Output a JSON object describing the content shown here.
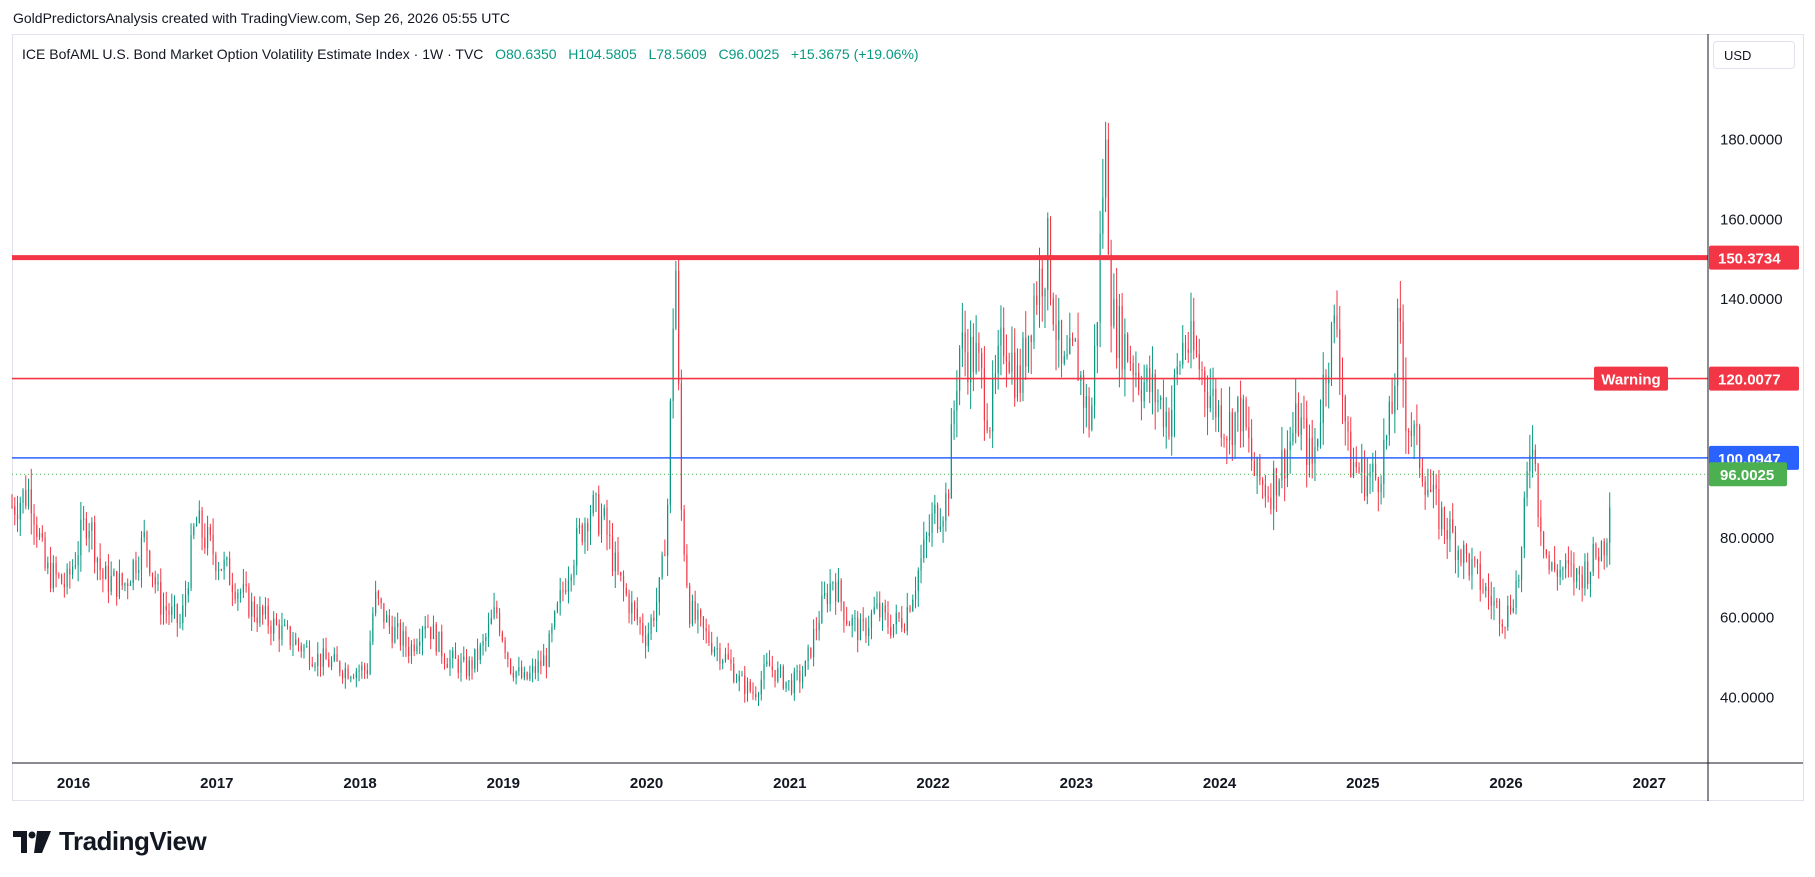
{
  "caption": "GoldPredictorsAnalysis created with TradingView.com, Sep 26, 2026 05:55 UTC",
  "header": {
    "title": "ICE BofAML U.S. Bond Market Option Volatility Estimate Index · 1W · TVC",
    "open": "O80.6350",
    "high": "H104.5805",
    "low": "L78.5609",
    "close": "C96.0025",
    "change": "+15.3675 (+19.06%)"
  },
  "currency": "USD",
  "brand": "TradingView",
  "colors": {
    "up": "#089981",
    "down": "#f23645",
    "blue_line": "#2962ff",
    "red_line": "#f23645",
    "price_label": "#4caf50"
  },
  "chart_data": {
    "type": "candlestick",
    "timeframe": "1W",
    "y_ticks": [
      40,
      60,
      80,
      140,
      160,
      180
    ],
    "y_tick_labels": [
      "40.0000",
      "60.0000",
      "80.0000",
      "140.0000",
      "160.0000",
      "180.0000"
    ],
    "ylim": [
      23.5,
      205
    ],
    "x_ticks": [
      "2016",
      "2017",
      "2018",
      "2019",
      "2020",
      "2021",
      "2022",
      "2023",
      "2024",
      "2025",
      "2026",
      "2027"
    ],
    "x_range_years": [
      2015.57,
      2027.41
    ],
    "grid": false,
    "horizontal_lines": [
      {
        "value": 150.3734,
        "label": "150.3734",
        "color": "#f23645",
        "weight": "thick"
      },
      {
        "value": 120.0077,
        "label": "120.0077",
        "color": "#f23645",
        "weight": "thin",
        "tag": "Warning"
      },
      {
        "value": 100.0947,
        "label": "100.0947",
        "color": "#2962ff",
        "weight": "thin"
      }
    ],
    "last_price": {
      "value": 96.0025,
      "label": "96.0025"
    },
    "price_path": [
      [
        2015.57,
        88
      ],
      [
        2015.7,
        92
      ],
      [
        2015.8,
        72
      ],
      [
        2015.95,
        68
      ],
      [
        2016.1,
        86
      ],
      [
        2016.2,
        70
      ],
      [
        2016.35,
        68
      ],
      [
        2016.5,
        80
      ],
      [
        2016.6,
        64
      ],
      [
        2016.75,
        58
      ],
      [
        2016.85,
        84
      ],
      [
        2017.0,
        75
      ],
      [
        2017.1,
        70
      ],
      [
        2017.25,
        62
      ],
      [
        2017.4,
        58
      ],
      [
        2017.5,
        55
      ],
      [
        2017.7,
        50
      ],
      [
        2017.9,
        47
      ],
      [
        2018.05,
        47
      ],
      [
        2018.1,
        65
      ],
      [
        2018.2,
        58
      ],
      [
        2018.35,
        52
      ],
      [
        2018.45,
        60
      ],
      [
        2018.6,
        50
      ],
      [
        2018.75,
        47
      ],
      [
        2018.85,
        52
      ],
      [
        2018.95,
        62
      ],
      [
        2019.05,
        48
      ],
      [
        2019.15,
        44
      ],
      [
        2019.3,
        50
      ],
      [
        2019.45,
        72
      ],
      [
        2019.6,
        88
      ],
      [
        2019.7,
        84
      ],
      [
        2019.8,
        70
      ],
      [
        2019.9,
        62
      ],
      [
        2020.0,
        55
      ],
      [
        2020.1,
        68
      ],
      [
        2020.15,
        90
      ],
      [
        2020.2,
        155
      ],
      [
        2020.24,
        88
      ],
      [
        2020.3,
        62
      ],
      [
        2020.4,
        56
      ],
      [
        2020.55,
        50
      ],
      [
        2020.65,
        44
      ],
      [
        2020.75,
        41
      ],
      [
        2020.85,
        48
      ],
      [
        2021.0,
        43
      ],
      [
        2021.1,
        46
      ],
      [
        2021.2,
        60
      ],
      [
        2021.3,
        70
      ],
      [
        2021.4,
        60
      ],
      [
        2021.5,
        56
      ],
      [
        2021.6,
        62
      ],
      [
        2021.7,
        58
      ],
      [
        2021.8,
        60
      ],
      [
        2021.9,
        72
      ],
      [
        2022.0,
        85
      ],
      [
        2022.1,
        90
      ],
      [
        2022.18,
        128
      ],
      [
        2022.3,
        125
      ],
      [
        2022.4,
        110
      ],
      [
        2022.5,
        132
      ],
      [
        2022.6,
        118
      ],
      [
        2022.7,
        140
      ],
      [
        2022.8,
        152
      ],
      [
        2022.9,
        120
      ],
      [
        2023.0,
        126
      ],
      [
        2023.05,
        116
      ],
      [
        2023.1,
        108
      ],
      [
        2023.15,
        140
      ],
      [
        2023.2,
        180
      ],
      [
        2023.25,
        135
      ],
      [
        2023.35,
        128
      ],
      [
        2023.45,
        120
      ],
      [
        2023.55,
        116
      ],
      [
        2023.65,
        110
      ],
      [
        2023.75,
        130
      ],
      [
        2023.85,
        124
      ],
      [
        2023.95,
        115
      ],
      [
        2024.05,
        108
      ],
      [
        2024.15,
        112
      ],
      [
        2024.25,
        95
      ],
      [
        2024.35,
        92
      ],
      [
        2024.45,
        100
      ],
      [
        2024.55,
        110
      ],
      [
        2024.65,
        98
      ],
      [
        2024.75,
        126
      ],
      [
        2024.82,
        134
      ],
      [
        2024.9,
        100
      ],
      [
        2025.0,
        96
      ],
      [
        2025.1,
        95
      ],
      [
        2025.2,
        110
      ],
      [
        2025.25,
        134
      ],
      [
        2025.3,
        112
      ],
      [
        2025.4,
        100
      ],
      [
        2025.5,
        88
      ],
      [
        2025.6,
        82
      ],
      [
        2025.7,
        76
      ],
      [
        2025.8,
        70
      ],
      [
        2025.9,
        64
      ],
      [
        2026.0,
        60
      ],
      [
        2026.1,
        72
      ],
      [
        2026.18,
        110
      ],
      [
        2026.22,
        90
      ],
      [
        2026.3,
        72
      ],
      [
        2026.4,
        72
      ],
      [
        2026.5,
        70
      ],
      [
        2026.6,
        74
      ],
      [
        2026.7,
        80
      ],
      [
        2026.73,
        96
      ]
    ]
  }
}
